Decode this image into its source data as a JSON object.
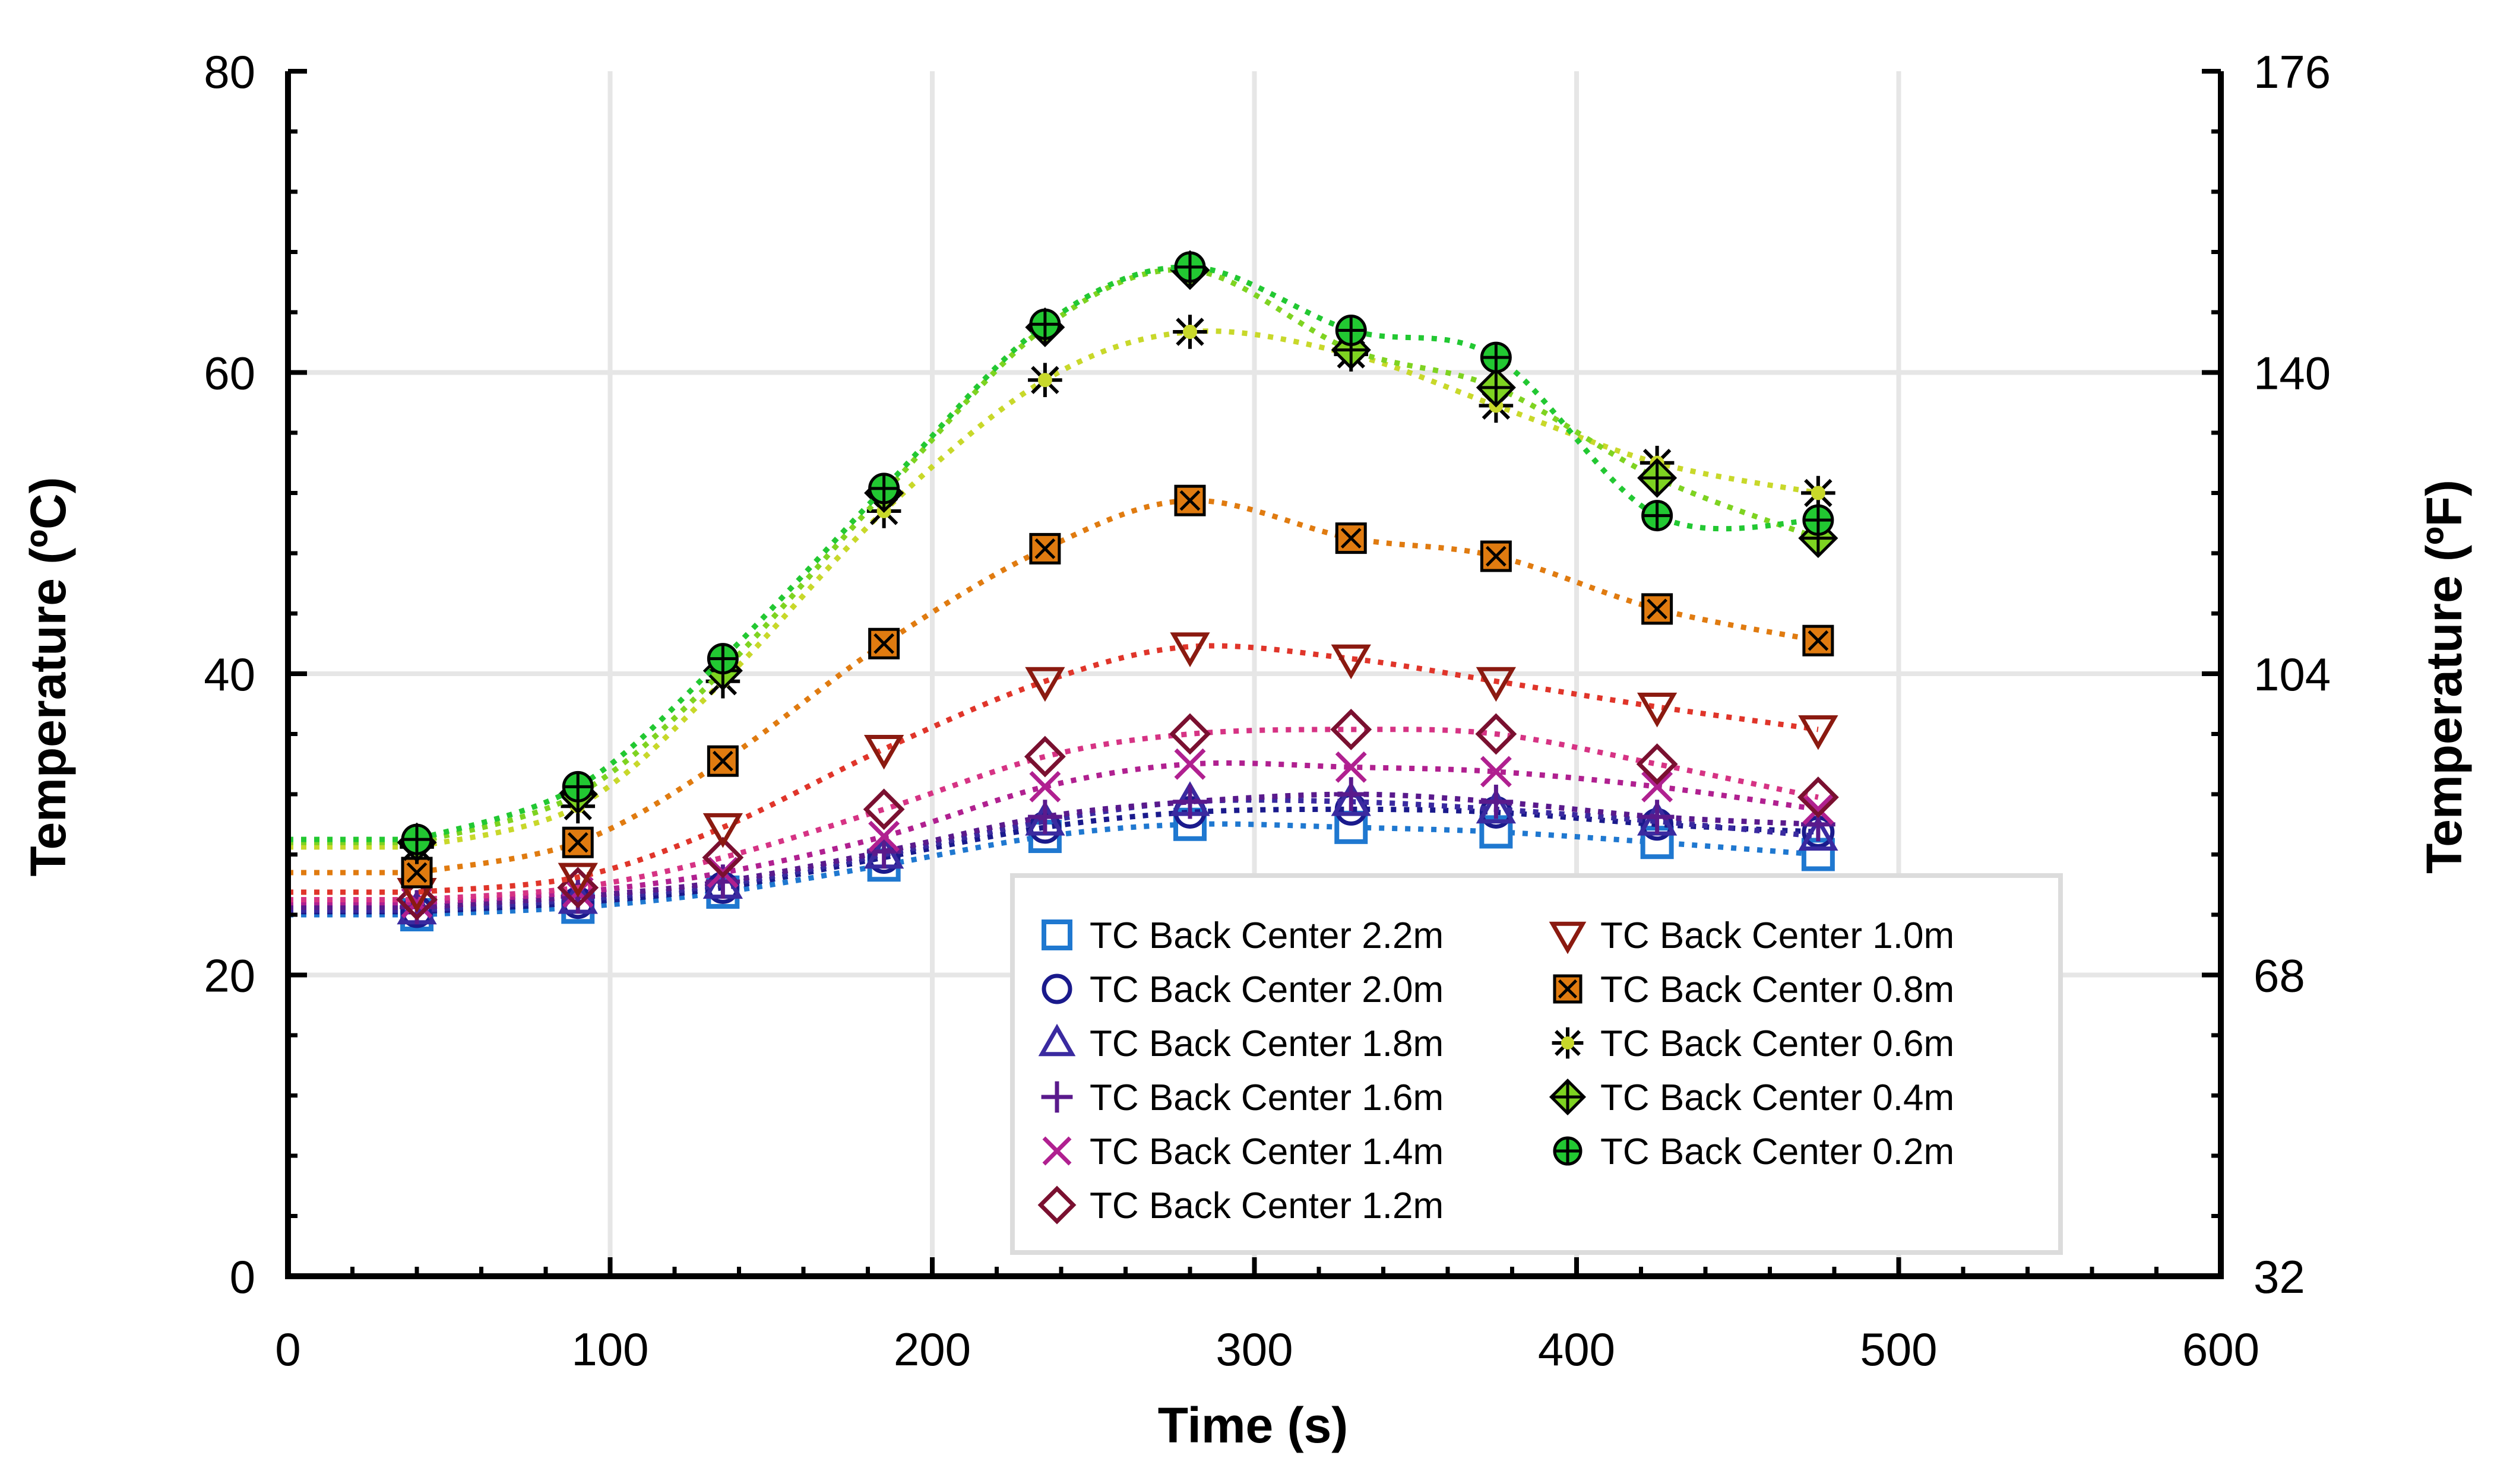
{
  "chart_data": {
    "type": "line",
    "xlabel": "Time (s)",
    "ylabel_left": "Temperature (ºC)",
    "ylabel_right": "Temperature (ºF)",
    "xlim": [
      0,
      600
    ],
    "ylim": [
      0,
      80
    ],
    "ylim_right": [
      32,
      176
    ],
    "x_ticks": [
      0,
      100,
      200,
      300,
      400,
      500,
      600
    ],
    "y_ticks": [
      0,
      20,
      40,
      60,
      80
    ],
    "y_ticks_right": [
      32,
      68,
      104,
      140,
      176
    ],
    "grid": true,
    "legend_position": "bottom-right",
    "x": [
      40,
      90,
      135,
      185,
      235,
      280,
      330,
      375,
      425,
      475
    ],
    "series": [
      {
        "name": "TC Back Center 2.2m",
        "marker": "square",
        "color": "#1f78d0",
        "values": [
          24.0,
          24.5,
          25.5,
          27.3,
          29.2,
          30.0,
          29.8,
          29.5,
          28.8,
          28.0
        ]
      },
      {
        "name": "TC Back Center 2.0m",
        "marker": "circle",
        "color": "#1a1a8c",
        "values": [
          24.2,
          24.8,
          25.8,
          27.8,
          29.8,
          30.8,
          31.0,
          30.8,
          30.0,
          29.5
        ]
      },
      {
        "name": "TC Back Center 1.8m",
        "marker": "triangle-up",
        "color": "#3a2aa0",
        "values": [
          24.3,
          25.0,
          26.0,
          28.0,
          30.2,
          31.5,
          31.5,
          31.0,
          30.2,
          29.2
        ]
      },
      {
        "name": "TC Back Center 1.6m",
        "marker": "plus",
        "color": "#5a1a8c",
        "values": [
          24.5,
          25.2,
          26.2,
          28.2,
          30.5,
          31.5,
          32.0,
          31.5,
          30.5,
          30.0
        ]
      },
      {
        "name": "TC Back Center 1.4m",
        "marker": "x",
        "color": "#b02090",
        "values": [
          24.8,
          25.5,
          26.8,
          29.2,
          32.5,
          34.0,
          33.8,
          33.5,
          32.5,
          31.0
        ]
      },
      {
        "name": "TC Back Center 1.2m",
        "marker": "diamond",
        "color": "#d63384",
        "values": [
          25.0,
          25.8,
          27.8,
          31.0,
          34.5,
          36.0,
          36.3,
          36.0,
          34.0,
          31.8
        ]
      },
      {
        "name": "TC Back Center 1.0m",
        "marker": "triangle-down",
        "color": "#e0352a",
        "values": [
          25.5,
          26.5,
          29.8,
          35.0,
          39.5,
          41.8,
          41.0,
          39.5,
          37.8,
          36.3
        ]
      },
      {
        "name": "TC Back Center 0.8m",
        "marker": "square-x",
        "color": "#e07b10",
        "values": [
          26.8,
          28.8,
          34.2,
          42.0,
          48.3,
          51.5,
          49.0,
          47.8,
          44.3,
          42.2
        ]
      },
      {
        "name": "TC Back Center 0.6m",
        "marker": "star",
        "color": "#c8d82a",
        "values": [
          28.5,
          31.2,
          39.5,
          50.8,
          59.5,
          62.7,
          61.2,
          57.8,
          54.0,
          52.0
        ]
      },
      {
        "name": "TC Back Center 0.4m",
        "marker": "diamond-plus",
        "color": "#7ed321",
        "values": [
          28.8,
          32.0,
          40.2,
          52.0,
          63.0,
          66.8,
          61.5,
          59.0,
          53.0,
          49.0
        ]
      },
      {
        "name": "TC Back Center 0.2m",
        "marker": "circle-plus",
        "color": "#22c832",
        "values": [
          29.0,
          32.5,
          41.0,
          52.3,
          63.2,
          67.0,
          62.8,
          61.0,
          50.5,
          50.2
        ]
      }
    ]
  }
}
